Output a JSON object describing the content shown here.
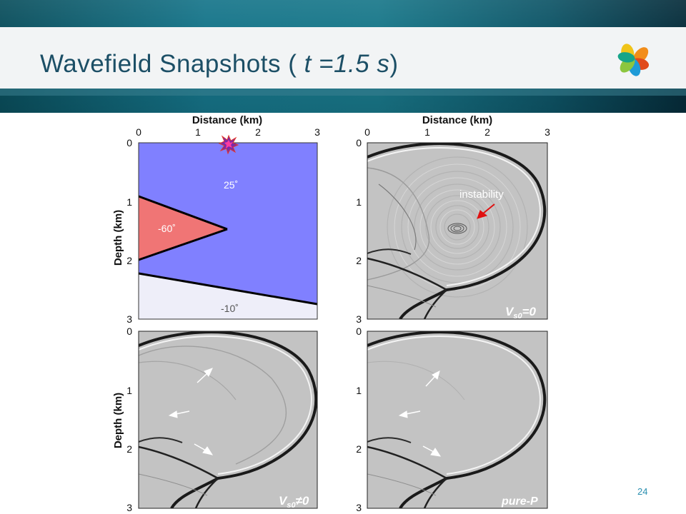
{
  "slide": {
    "title_text": "Wavefield Snapshots ( ",
    "title_italic": "t =1.5 s",
    "title_end": ")",
    "page_number": "24"
  },
  "axes": {
    "distance_label": "Distance (km)",
    "depth_label": "Depth (km)",
    "x_ticks": [
      "0",
      "1",
      "2",
      "3"
    ],
    "y_ticks": [
      "0",
      "1",
      "2",
      "3"
    ],
    "x_range_km": [
      0,
      3
    ],
    "depth_range_km": [
      0,
      3
    ]
  },
  "model_panel": {
    "layer_top_dip": "25˚",
    "wedge_dip": "-60˚",
    "layer_bottom_dip": "-10˚",
    "colors": {
      "top_layer": "#8080ff",
      "wedge": "#f07575",
      "bottom_layer": "#eeeef9"
    }
  },
  "snapshot_panels": [
    {
      "id": "vs0-zero",
      "label_main": "V",
      "label_sub": "s0",
      "label_rest": "=0",
      "annotation": "instability"
    },
    {
      "id": "vs0-nonzero",
      "label_main": "V",
      "label_sub": "s0",
      "label_rest": "≠0"
    },
    {
      "id": "pure-p",
      "label_main": "pure-P"
    }
  ],
  "colors": {
    "arrow_red": "#e01010",
    "arrow_white": "#ffffff",
    "title": "#1c4f66",
    "page_number": "#2a8fb0"
  }
}
